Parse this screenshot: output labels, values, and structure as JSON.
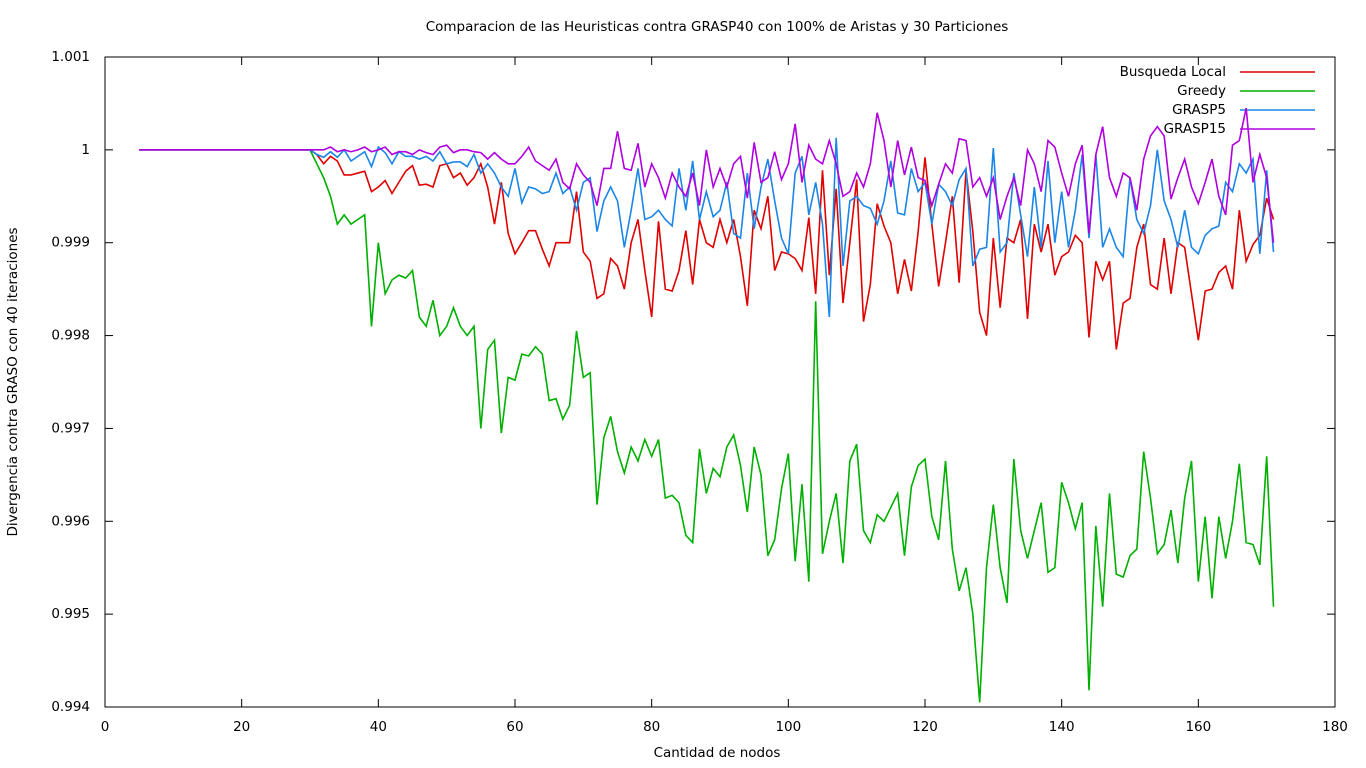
{
  "chart_data": {
    "type": "line",
    "title": "Comparacion de las Heuristicas contra GRASP40 con 100% de Aristas y 30 Particiones",
    "x_label": "Cantidad de nodos",
    "y_label": "Divergencia contra GRASO con 40 iteraciones",
    "legend": "top-right",
    "xlim": [
      0,
      180
    ],
    "xticks": [
      0,
      20,
      40,
      60,
      80,
      100,
      120,
      140,
      160,
      180
    ],
    "ylim": [
      0.994,
      1.001
    ],
    "yticks": [
      0.994,
      0.995,
      0.996,
      0.997,
      0.998,
      0.999,
      1,
      1.001
    ],
    "x": [
      5,
      30,
      31,
      32,
      33,
      34,
      35,
      36,
      37,
      38,
      39,
      40,
      41,
      42,
      43,
      44,
      45,
      46,
      47,
      48,
      49,
      50,
      51,
      52,
      53,
      54,
      55,
      56,
      57,
      58,
      59,
      60,
      61,
      62,
      63,
      64,
      65,
      66,
      67,
      68,
      69,
      70,
      71,
      72,
      73,
      74,
      75,
      76,
      77,
      78,
      79,
      80,
      81,
      82,
      83,
      84,
      85,
      86,
      87,
      88,
      89,
      90,
      91,
      92,
      93,
      94,
      95,
      96,
      97,
      98,
      99,
      100,
      101,
      102,
      103,
      104,
      105,
      106,
      107,
      108,
      109,
      110,
      111,
      112,
      113,
      114,
      115,
      116,
      117,
      118,
      119,
      120,
      121,
      122,
      123,
      124,
      125,
      126,
      127,
      128,
      129,
      130,
      131,
      132,
      133,
      134,
      135,
      136,
      137,
      138,
      139,
      140,
      141,
      142,
      143,
      144,
      145,
      146,
      147,
      148,
      149,
      150,
      151,
      152,
      153,
      154,
      155,
      156,
      157,
      158,
      159,
      160,
      161,
      162,
      163,
      164,
      165,
      166,
      167,
      168,
      169,
      170,
      171
    ],
    "series": [
      {
        "name": "Busqueda Local",
        "color": "#e00000",
        "values": [
          1,
          1,
          0.99995,
          0.99985,
          0.99993,
          0.99988,
          0.99973,
          0.99973,
          0.99975,
          0.99977,
          0.99955,
          0.9996,
          0.99967,
          0.99953,
          0.99965,
          0.99977,
          0.99983,
          0.99962,
          0.99963,
          0.9996,
          0.99983,
          0.99985,
          0.9997,
          0.99975,
          0.99962,
          0.9997,
          0.99985,
          0.9996,
          0.9992,
          0.99965,
          0.9991,
          0.99888,
          0.999,
          0.99913,
          0.99913,
          0.99893,
          0.99875,
          0.999,
          0.999,
          0.999,
          0.99955,
          0.9989,
          0.9988,
          0.9984,
          0.99845,
          0.99883,
          0.99875,
          0.9985,
          0.999,
          0.99925,
          0.9987,
          0.9982,
          0.99923,
          0.9985,
          0.99848,
          0.9987,
          0.99913,
          0.99855,
          0.99925,
          0.999,
          0.99895,
          0.99925,
          0.999,
          0.99925,
          0.99885,
          0.99832,
          0.99935,
          0.99915,
          0.9995,
          0.9987,
          0.9989,
          0.99888,
          0.99883,
          0.9987,
          0.99927,
          0.99845,
          0.99978,
          0.99865,
          0.99958,
          0.99835,
          0.999,
          0.99968,
          0.99815,
          0.99855,
          0.99942,
          0.99918,
          0.999,
          0.99845,
          0.99882,
          0.99848,
          0.99912,
          0.99992,
          0.9992,
          0.99853,
          0.999,
          0.9995,
          0.99857,
          0.99978,
          0.99912,
          0.99825,
          0.998,
          0.99905,
          0.9983,
          0.99905,
          0.999,
          0.99925,
          0.99818,
          0.9992,
          0.9989,
          0.9992,
          0.99865,
          0.99885,
          0.9989,
          0.99908,
          0.999,
          0.99798,
          0.9988,
          0.9986,
          0.9988,
          0.99785,
          0.99835,
          0.9984,
          0.99895,
          0.9992,
          0.99855,
          0.9985,
          0.99905,
          0.99845,
          0.999,
          0.99895,
          0.99845,
          0.99795,
          0.99848,
          0.9985,
          0.99868,
          0.99875,
          0.9985,
          0.99935,
          0.9988,
          0.99898,
          0.99908,
          0.99948,
          0.99925
        ]
      },
      {
        "name": "Greedy",
        "color": "#00b000",
        "values": [
          1,
          1,
          0.99985,
          0.9997,
          0.9995,
          0.9992,
          0.9993,
          0.9992,
          0.99925,
          0.9993,
          0.9981,
          0.999,
          0.99845,
          0.9986,
          0.99865,
          0.99862,
          0.9987,
          0.9982,
          0.9981,
          0.99838,
          0.998,
          0.9981,
          0.9983,
          0.9981,
          0.998,
          0.9981,
          0.997,
          0.99785,
          0.99795,
          0.99695,
          0.99755,
          0.99752,
          0.9978,
          0.99778,
          0.99788,
          0.9978,
          0.9973,
          0.99732,
          0.9971,
          0.99725,
          0.99805,
          0.99755,
          0.9976,
          0.99618,
          0.9969,
          0.99713,
          0.99675,
          0.99652,
          0.9968,
          0.99665,
          0.99688,
          0.9967,
          0.99688,
          0.99625,
          0.99628,
          0.9962,
          0.99585,
          0.99577,
          0.99678,
          0.9963,
          0.99657,
          0.99648,
          0.9968,
          0.99693,
          0.9966,
          0.9961,
          0.9968,
          0.9965,
          0.99563,
          0.9958,
          0.99635,
          0.99673,
          0.99557,
          0.9964,
          0.99535,
          0.99837,
          0.99565,
          0.996,
          0.9963,
          0.99555,
          0.99665,
          0.99683,
          0.9959,
          0.99577,
          0.99607,
          0.996,
          0.99615,
          0.9963,
          0.99563,
          0.99637,
          0.9966,
          0.99667,
          0.99605,
          0.9958,
          0.99665,
          0.9957,
          0.99525,
          0.9955,
          0.995,
          0.99405,
          0.9955,
          0.99618,
          0.9955,
          0.99512,
          0.99667,
          0.9959,
          0.9956,
          0.9959,
          0.9962,
          0.99545,
          0.9955,
          0.99642,
          0.9962,
          0.99592,
          0.9962,
          0.99418,
          0.99595,
          0.99508,
          0.9963,
          0.99543,
          0.9954,
          0.99563,
          0.9957,
          0.99675,
          0.99625,
          0.99565,
          0.99575,
          0.99612,
          0.99555,
          0.99625,
          0.99665,
          0.99535,
          0.99605,
          0.99517,
          0.99605,
          0.9956,
          0.996,
          0.99662,
          0.99577,
          0.99575,
          0.99553,
          0.9967,
          0.99508
        ]
      },
      {
        "name": "GRASP5",
        "color": "#1a86e8",
        "values": [
          1,
          1,
          0.99995,
          0.99992,
          0.99998,
          0.99992,
          1,
          0.99988,
          0.99993,
          0.99998,
          0.99982,
          1.00003,
          0.99997,
          0.99985,
          0.99998,
          0.99993,
          0.99993,
          0.9999,
          0.99993,
          0.99988,
          0.99998,
          0.99985,
          0.99987,
          0.99987,
          0.99982,
          0.99995,
          0.99975,
          0.99985,
          0.99975,
          0.9996,
          0.9995,
          0.9998,
          0.99943,
          0.9996,
          0.99958,
          0.99953,
          0.99955,
          0.99975,
          0.99953,
          0.9996,
          0.99935,
          0.99965,
          0.9997,
          0.99912,
          0.99945,
          0.9996,
          0.99945,
          0.99895,
          0.99935,
          0.9998,
          0.99925,
          0.99928,
          0.99935,
          0.99925,
          0.99918,
          0.9998,
          0.99935,
          0.99988,
          0.99925,
          0.99955,
          0.99928,
          0.99935,
          0.99965,
          0.9991,
          0.99905,
          0.99975,
          0.99915,
          0.9996,
          0.9999,
          0.99945,
          0.99905,
          0.99888,
          0.99975,
          0.99993,
          0.9993,
          0.99965,
          0.9992,
          0.9982,
          1.00013,
          0.99875,
          0.99945,
          0.9995,
          0.9994,
          0.99937,
          0.9992,
          0.99945,
          0.99988,
          0.99932,
          0.9993,
          0.9998,
          0.99955,
          0.99965,
          0.9992,
          0.99963,
          0.99955,
          0.9994,
          0.99968,
          0.9998,
          0.99875,
          0.99893,
          0.99895,
          1.00002,
          0.9989,
          0.999,
          0.99975,
          0.9993,
          0.99885,
          0.9996,
          0.99895,
          0.99988,
          0.999,
          0.99955,
          0.99895,
          0.99935,
          0.99995,
          0.99905,
          0.99995,
          0.99895,
          0.99915,
          0.99895,
          0.99885,
          0.9997,
          0.99925,
          0.9991,
          0.9994,
          1,
          0.99945,
          0.99925,
          0.99895,
          0.99935,
          0.99895,
          0.99888,
          0.99908,
          0.99915,
          0.99918,
          0.99965,
          0.99955,
          0.99985,
          0.99975,
          0.9999,
          0.99888,
          0.99978,
          0.9989
        ]
      },
      {
        "name": "GRASP15",
        "color": "#b000e0",
        "values": [
          1,
          1,
          1,
          1,
          1.00003,
          0.99998,
          1,
          0.99998,
          1,
          1.00003,
          0.99998,
          1,
          1.00003,
          0.99995,
          0.99998,
          0.99998,
          0.99995,
          1,
          0.99997,
          0.99995,
          1.00003,
          1.00005,
          0.99997,
          1,
          1,
          0.99998,
          0.99997,
          0.9999,
          0.99997,
          0.9999,
          0.99985,
          0.99985,
          0.99993,
          1.00003,
          0.99988,
          0.99983,
          0.99978,
          0.9999,
          0.99965,
          0.99958,
          0.99985,
          0.99973,
          0.99965,
          0.9994,
          0.9998,
          0.9998,
          1.0002,
          0.9998,
          0.99978,
          1.00007,
          0.9996,
          0.99985,
          0.9997,
          0.99948,
          0.99975,
          0.9996,
          0.9995,
          0.99975,
          0.9994,
          1,
          0.9996,
          0.9998,
          0.9996,
          0.99985,
          0.99993,
          0.99948,
          1.00008,
          0.99965,
          0.9997,
          0.99998,
          0.99968,
          0.99985,
          1.00028,
          0.99965,
          1.00005,
          0.9999,
          0.99985,
          1.0001,
          0.99985,
          0.9995,
          0.99955,
          0.99975,
          0.9996,
          0.99985,
          1.0004,
          1.0001,
          0.9996,
          1.0001,
          0.99973,
          1.00003,
          0.9997,
          0.99967,
          0.9994,
          0.99963,
          0.99985,
          0.99975,
          1.00012,
          1.0001,
          0.9996,
          0.9997,
          0.9995,
          0.9997,
          0.99925,
          0.9995,
          0.9997,
          0.9994,
          1,
          0.99985,
          0.99955,
          1.0001,
          1.00003,
          0.99975,
          0.9995,
          0.99985,
          1.00005,
          0.9991,
          0.99995,
          1.00025,
          0.9997,
          0.9995,
          0.99975,
          0.9997,
          0.99935,
          0.9999,
          1.00015,
          1.00025,
          1.00015,
          0.99947,
          0.9997,
          0.9999,
          0.9996,
          0.99942,
          0.99965,
          0.9999,
          0.9995,
          0.9993,
          1.00005,
          1.0001,
          1.00045,
          0.99965,
          0.99995,
          0.9997,
          0.999
        ]
      }
    ]
  }
}
